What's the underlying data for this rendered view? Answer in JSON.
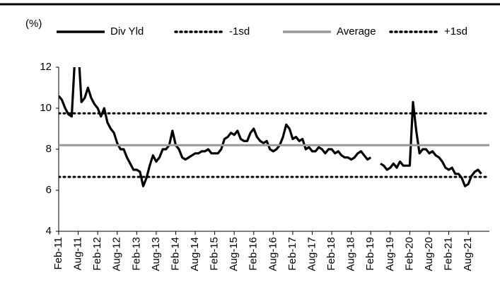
{
  "chart_data": {
    "type": "line",
    "ylabel": "(%)",
    "ylim": [
      4,
      12
    ],
    "yticks": [
      4,
      6,
      8,
      10,
      12
    ],
    "categories": [
      "Feb-11",
      null,
      null,
      null,
      null,
      null,
      "Aug-11",
      null,
      null,
      null,
      null,
      null,
      "Feb-12",
      null,
      null,
      null,
      null,
      null,
      "Aug-12",
      null,
      null,
      null,
      null,
      null,
      "Feb-13",
      null,
      null,
      null,
      null,
      null,
      "Aug-13",
      null,
      null,
      null,
      null,
      null,
      "Feb-14",
      null,
      null,
      null,
      null,
      null,
      "Aug-14",
      null,
      null,
      null,
      null,
      null,
      "Feb-15",
      null,
      null,
      null,
      null,
      null,
      "Aug-15",
      null,
      null,
      null,
      null,
      null,
      "Feb-16",
      null,
      null,
      null,
      null,
      null,
      "Aug-16",
      null,
      null,
      null,
      null,
      null,
      "Feb-17",
      null,
      null,
      null,
      null,
      null,
      "Aug-17",
      null,
      null,
      null,
      null,
      null,
      "Feb-18",
      null,
      null,
      null,
      null,
      null,
      "Aug-18",
      null,
      null,
      null,
      null,
      null,
      "Feb-19",
      null,
      null,
      null,
      null,
      null,
      "Aug-19",
      null,
      null,
      null,
      null,
      null,
      "Feb-20",
      null,
      null,
      null,
      null,
      null,
      "Aug-20",
      null,
      null,
      null,
      null,
      null,
      "Feb-21",
      null,
      null,
      null,
      null,
      null,
      "Aug-21",
      null,
      null,
      null,
      null
    ],
    "series": [
      {
        "name": "Div Yld",
        "color": "#000000",
        "style": "solid",
        "values": [
          10.6,
          10.4,
          10.0,
          9.7,
          9.6,
          12.5,
          13,
          10.3,
          10.5,
          11.0,
          10.5,
          10.2,
          10.0,
          9.6,
          10.0,
          9.3,
          9.0,
          8.8,
          8.3,
          8.0,
          8.0,
          7.6,
          7.3,
          7.0,
          7.0,
          6.9,
          6.2,
          6.6,
          7.2,
          7.7,
          7.4,
          7.6,
          8.0,
          8.0,
          8.2,
          8.9,
          8.2,
          8.0,
          7.6,
          7.5,
          7.6,
          7.7,
          7.8,
          7.8,
          7.9,
          7.9,
          8.0,
          7.8,
          7.8,
          7.8,
          8.0,
          8.5,
          8.6,
          8.8,
          8.7,
          8.9,
          8.5,
          8.4,
          8.4,
          8.8,
          9.0,
          8.6,
          8.4,
          8.3,
          8.4,
          8.0,
          7.9,
          8.0,
          8.2,
          8.6,
          9.2,
          9.0,
          8.5,
          8.6,
          8.4,
          8.5,
          8.0,
          8.1,
          7.9,
          7.9,
          8.1,
          8.0,
          7.8,
          8.0,
          8.0,
          7.8,
          7.9,
          7.7,
          7.6,
          7.6,
          7.5,
          7.6,
          7.8,
          7.9,
          7.7,
          7.5,
          7.6,
          null,
          null,
          7.3,
          7.2,
          7.0,
          7.1,
          7.3,
          7.1,
          7.4,
          7.2,
          7.2,
          7.2,
          10.3,
          8.9,
          7.8,
          8.0,
          8.0,
          7.8,
          7.9,
          7.7,
          7.6,
          7.4,
          7.1,
          7.0,
          7.1,
          6.8,
          6.8,
          6.6,
          6.2,
          6.3,
          6.7,
          6.9,
          7.0,
          6.8
        ]
      },
      {
        "name": "-1sd",
        "color": "#000000",
        "style": "dotted",
        "value": 6.65
      },
      {
        "name": "Average",
        "color": "#999999",
        "style": "solid",
        "value": 8.2
      },
      {
        "name": "+1sd",
        "color": "#000000",
        "style": "dotted",
        "value": 9.75
      }
    ]
  }
}
